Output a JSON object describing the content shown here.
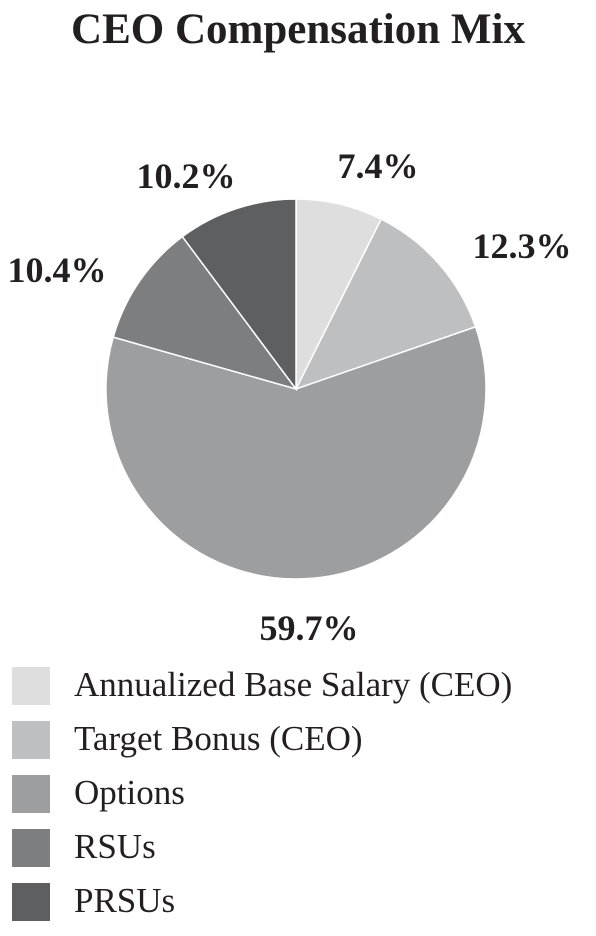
{
  "chart_data": {
    "type": "pie",
    "title": "CEO Compensation Mix",
    "categories": [
      "Annualized Base Salary (CEO)",
      "Target Bonus (CEO)",
      "Options",
      "RSUs",
      "PRSUs"
    ],
    "values": [
      7.4,
      12.3,
      59.7,
      10.4,
      10.2
    ],
    "data_labels": [
      "7.4%",
      "12.3%",
      "59.7%",
      "10.4%",
      "10.2%"
    ],
    "colors": [
      "#dededf",
      "#bebfc1",
      "#9d9ea0",
      "#7d7e80",
      "#5e5f61"
    ],
    "legend_position": "bottom-left",
    "slice_order": "clockwise-from-top"
  }
}
